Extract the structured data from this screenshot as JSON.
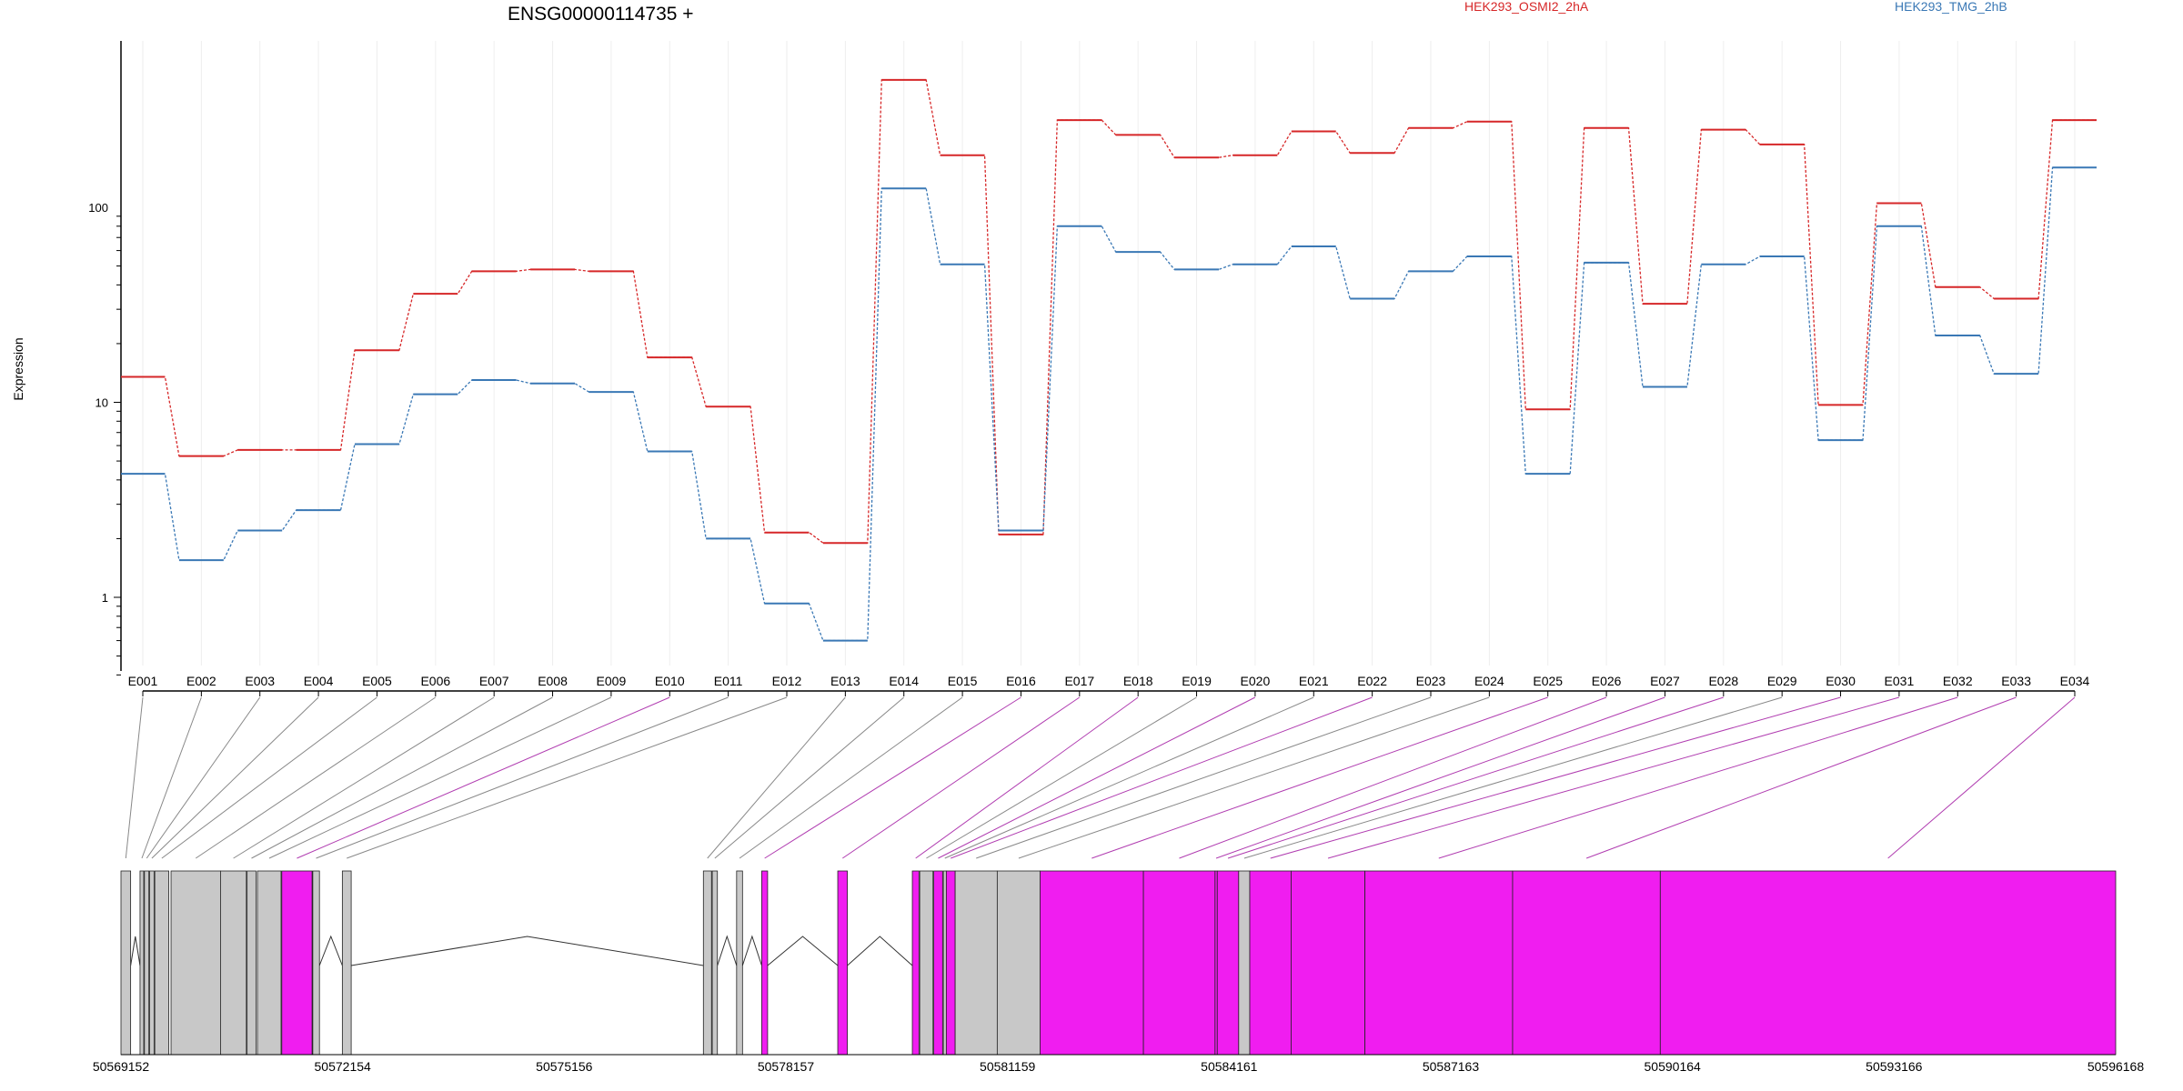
{
  "chart_data": {
    "type": "line",
    "title": "ENSG00000114735 +",
    "ylabel": "Expression",
    "yscale": "log",
    "ylim": [
      0.35,
      800
    ],
    "yticks": [
      1,
      10,
      100
    ],
    "ytick_labels": [
      "1",
      "10",
      "100"
    ],
    "categories": [
      "E001",
      "E002",
      "E003",
      "E004",
      "E005",
      "E006",
      "E007",
      "E008",
      "E009",
      "E010",
      "E011",
      "E012",
      "E013",
      "E014",
      "E015",
      "E016",
      "E017",
      "E018",
      "E019",
      "E020",
      "E021",
      "E022",
      "E023",
      "E024",
      "E025",
      "E026",
      "E027",
      "E028",
      "E029",
      "E030",
      "E031",
      "E032",
      "E033",
      "E034"
    ],
    "legend_position": "top",
    "series": [
      {
        "name": "HEK293_OSMI2_2hA",
        "color": "#d62728",
        "values": [
          13.5,
          5.3,
          5.7,
          5.7,
          18.5,
          36,
          47,
          48,
          47,
          17,
          9.5,
          2.15,
          1.9,
          450,
          185,
          2.1,
          280,
          235,
          180,
          185,
          245,
          190,
          255,
          275,
          9.2,
          255,
          32,
          250,
          210,
          9.7,
          105,
          39,
          34,
          280
        ]
      },
      {
        "name": "HEK293_TMG_2hB",
        "color": "#3a78b5",
        "values": [
          4.3,
          1.55,
          2.2,
          2.8,
          6.1,
          11,
          13,
          12.5,
          11.3,
          5.6,
          2,
          0.93,
          0.6,
          125,
          51,
          2.2,
          80,
          59,
          48,
          51,
          63,
          34,
          47,
          56,
          4.3,
          52,
          12,
          51,
          56,
          6.4,
          80,
          22,
          14,
          160
        ]
      }
    ],
    "genomic_axis": {
      "tick_labels": [
        "50569152",
        "50572154",
        "50575156",
        "50578157",
        "50581159",
        "50584161",
        "50587163",
        "50590164",
        "50593166",
        "50596168"
      ],
      "start": 50569152,
      "end": 50596168
    },
    "exons": [
      {
        "id": "E001",
        "start": 50569152,
        "end": 50569283,
        "color": "#c8c8c8"
      },
      {
        "id": "E002",
        "start": 50569410,
        "end": 50569460,
        "color": "#c8c8c8"
      },
      {
        "id": "E003",
        "start": 50569470,
        "end": 50569530,
        "color": "#c8c8c8"
      },
      {
        "id": "E004",
        "start": 50569540,
        "end": 50569600,
        "color": "#c8c8c8"
      },
      {
        "id": "E005",
        "start": 50569610,
        "end": 50569800,
        "color": "#c8c8c8"
      },
      {
        "id": "E006",
        "start": 50569830,
        "end": 50570500,
        "color": "#c8c8c8"
      },
      {
        "id": "E007",
        "start": 50570500,
        "end": 50570850,
        "color": "#c8c8c8"
      },
      {
        "id": "E008",
        "start": 50570860,
        "end": 50570980,
        "color": "#c8c8c8"
      },
      {
        "id": "E009",
        "start": 50571000,
        "end": 50571320,
        "color": "#c8c8c8"
      },
      {
        "id": "E010",
        "start": 50571330,
        "end": 50571740,
        "color": "#f01df0"
      },
      {
        "id": "E011",
        "start": 50571750,
        "end": 50571840,
        "color": "#c8c8c8"
      },
      {
        "id": "E012",
        "start": 50572150,
        "end": 50572270,
        "color": "#c8c8c8"
      },
      {
        "id": "E013",
        "start": 50577040,
        "end": 50577150,
        "color": "#c8c8c8"
      },
      {
        "id": "E014",
        "start": 50577160,
        "end": 50577230,
        "color": "#c8c8c8"
      },
      {
        "id": "E015",
        "start": 50577490,
        "end": 50577570,
        "color": "#c8c8c8"
      },
      {
        "id": "E016",
        "start": 50577830,
        "end": 50577910,
        "color": "#f01df0"
      },
      {
        "id": "E017",
        "start": 50578860,
        "end": 50578990,
        "color": "#f01df0"
      },
      {
        "id": "E018",
        "start": 50579870,
        "end": 50579960,
        "color": "#f01df0"
      },
      {
        "id": "E019",
        "start": 50579970,
        "end": 50580150,
        "color": "#c8c8c8"
      },
      {
        "id": "E020",
        "start": 50580160,
        "end": 50580280,
        "color": "#f01df0"
      },
      {
        "id": "E021",
        "start": 50580290,
        "end": 50580330,
        "color": "#c8c8c8"
      },
      {
        "id": "E022",
        "start": 50580330,
        "end": 50580450,
        "color": "#f01df0"
      },
      {
        "id": "E023",
        "start": 50580450,
        "end": 50581020,
        "color": "#c8c8c8"
      },
      {
        "id": "E024",
        "start": 50581020,
        "end": 50581600,
        "color": "#c8c8c8"
      },
      {
        "id": "E025",
        "start": 50581600,
        "end": 50583000,
        "color": "#f01df0"
      },
      {
        "id": "E026",
        "start": 50583000,
        "end": 50583970,
        "color": "#f01df0"
      },
      {
        "id": "E027",
        "start": 50583970,
        "end": 50584000,
        "color": "#f01df0"
      },
      {
        "id": "E028",
        "start": 50584000,
        "end": 50584290,
        "color": "#f01df0"
      },
      {
        "id": "E029",
        "start": 50584290,
        "end": 50584440,
        "color": "#c8c8c8"
      },
      {
        "id": "E030",
        "start": 50584440,
        "end": 50585000,
        "color": "#f01df0"
      },
      {
        "id": "E031",
        "start": 50585000,
        "end": 50586000,
        "color": "#f01df0"
      },
      {
        "id": "E032",
        "start": 50586000,
        "end": 50588000,
        "color": "#f01df0"
      },
      {
        "id": "E033",
        "start": 50588000,
        "end": 50590000,
        "color": "#f01df0"
      },
      {
        "id": "E034",
        "start": 50590000,
        "end": 50596168,
        "color": "#f01df0"
      }
    ]
  }
}
